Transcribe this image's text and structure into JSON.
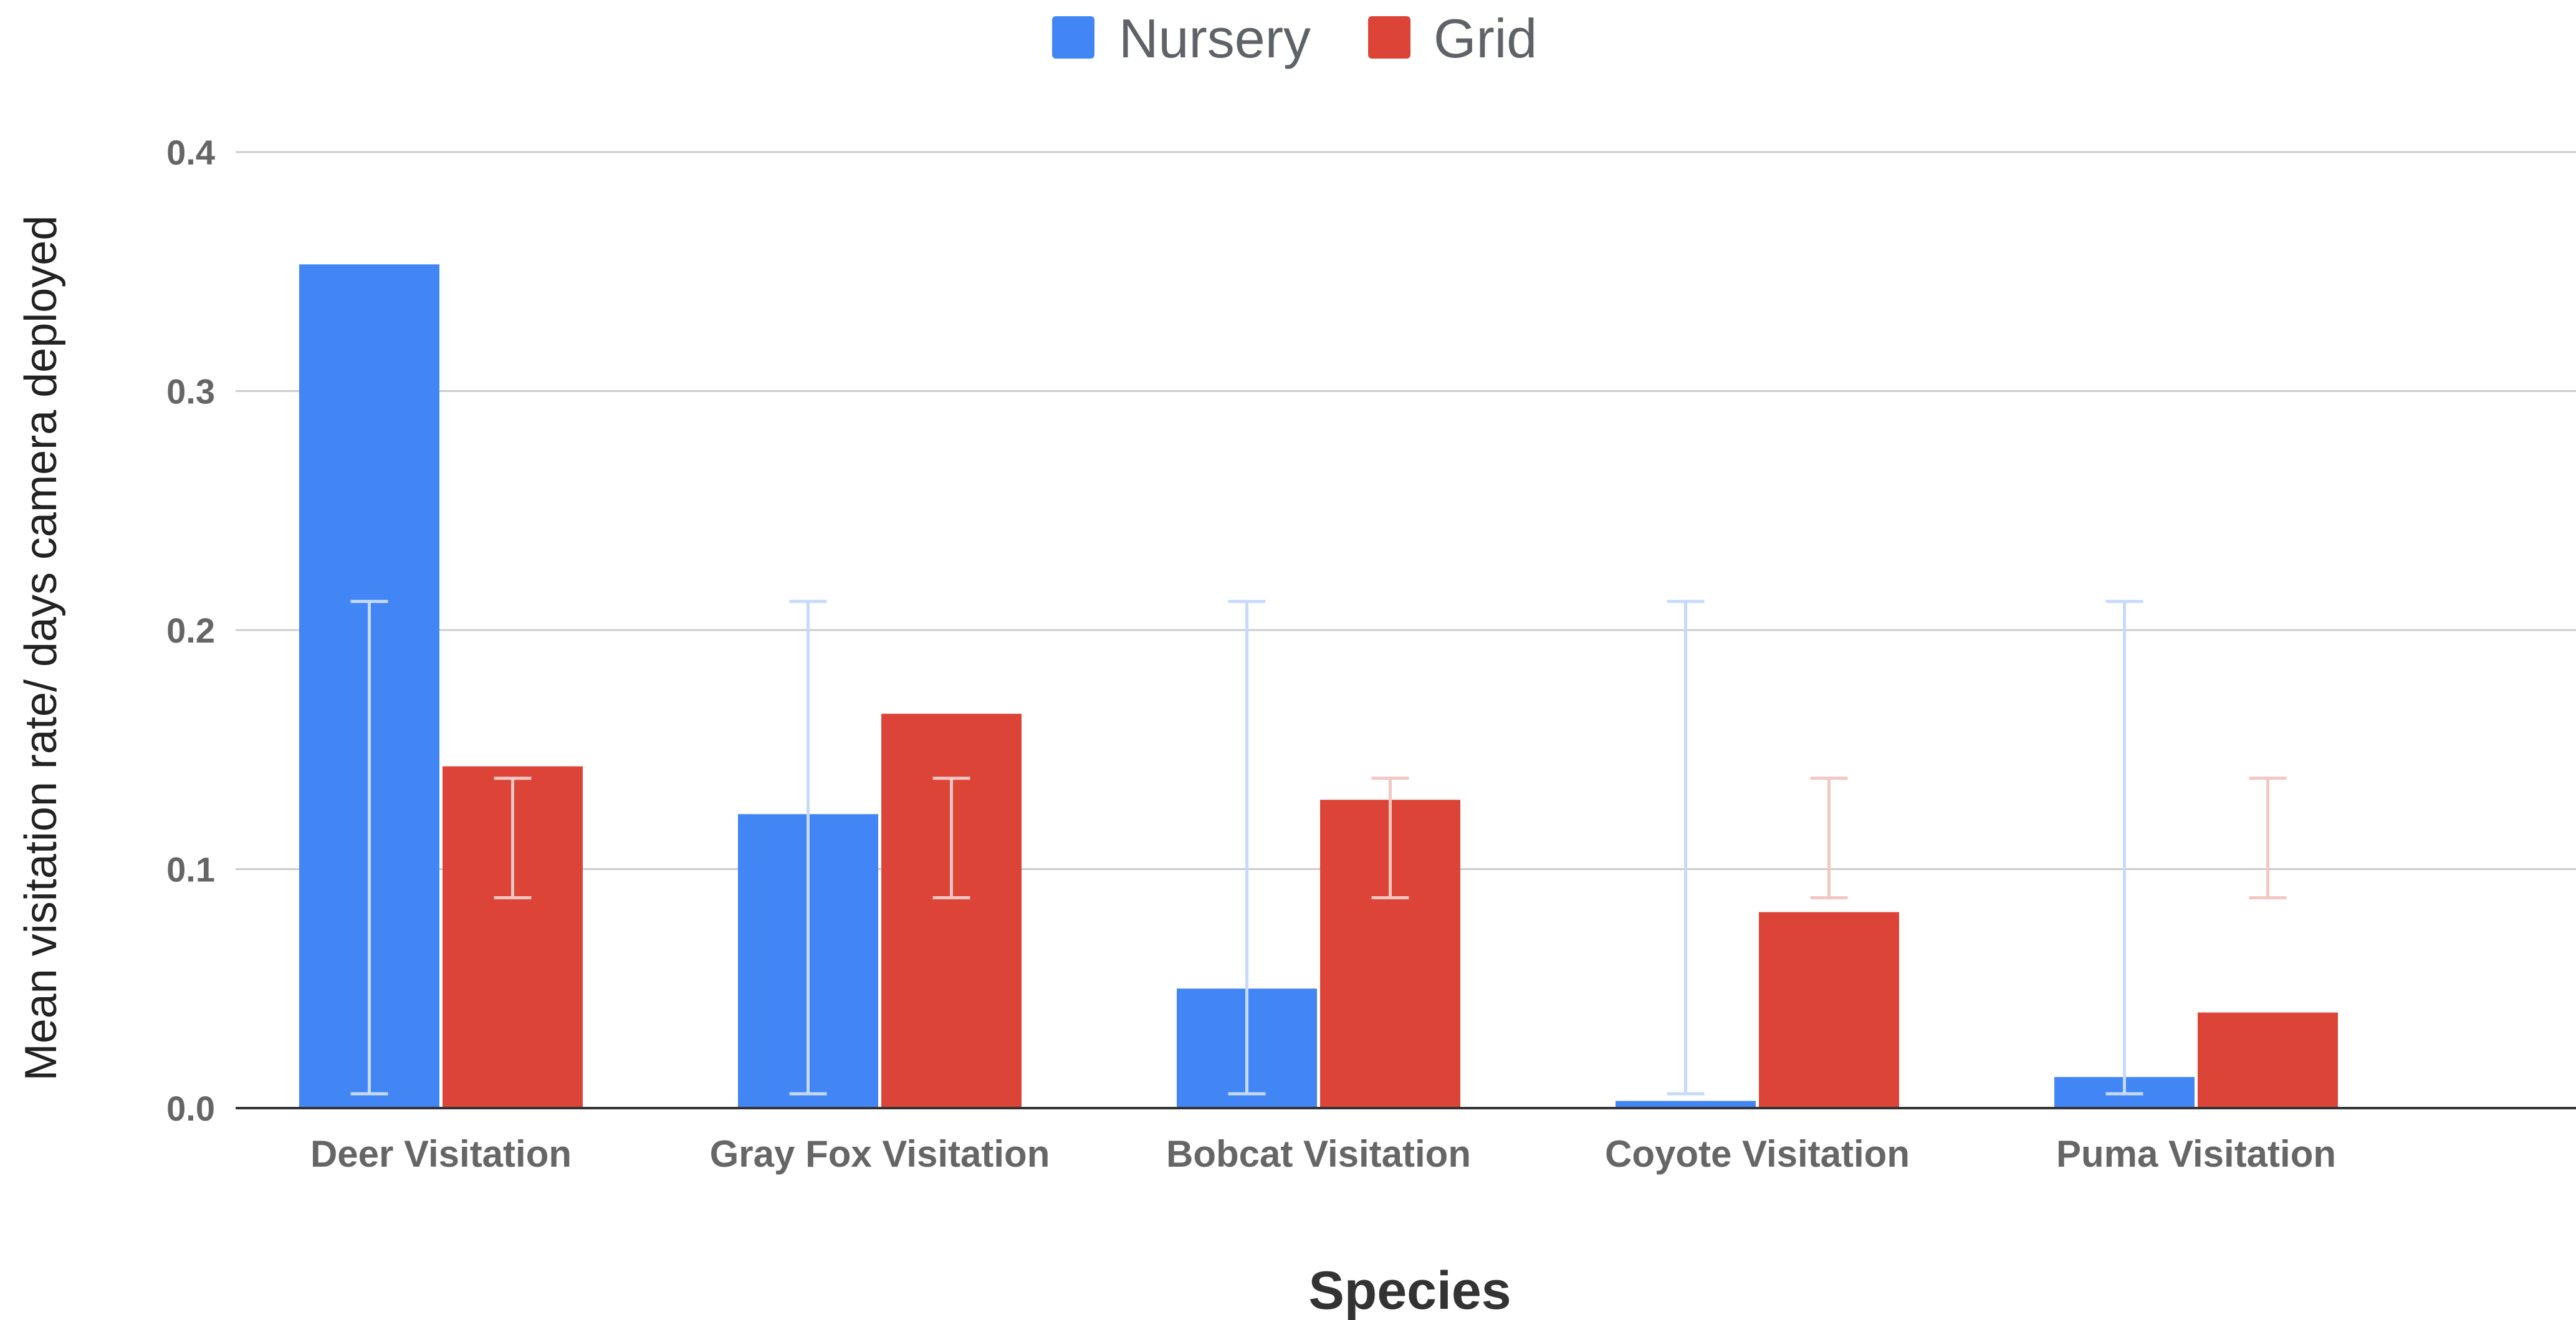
{
  "chart_data": {
    "type": "bar",
    "title": "",
    "xlabel": "Species",
    "ylabel": "Mean visitation rate/ days camera deployed",
    "categories": [
      "Deer Visitation",
      "Gray Fox Visitation",
      "Bobcat Visitation",
      "Coyote Visitation",
      "Puma Visitation"
    ],
    "series": [
      {
        "name": "Nursery",
        "color": "#4285f4",
        "values": [
          0.353,
          0.123,
          0.05,
          0.003,
          0.013
        ],
        "error_low": [
          0.006,
          0.006,
          0.006,
          0.006,
          0.006
        ],
        "error_high": [
          0.212,
          0.212,
          0.212,
          0.212,
          0.212
        ]
      },
      {
        "name": "Grid",
        "color": "#db4437",
        "values": [
          0.143,
          0.165,
          0.129,
          0.082,
          0.04
        ],
        "error_low": [
          0.088,
          0.088,
          0.088,
          0.088,
          0.088
        ],
        "error_high": [
          0.138,
          0.138,
          0.138,
          0.138,
          0.138
        ]
      }
    ],
    "ylim": [
      0,
      0.4
    ],
    "yticks": [
      0,
      0.1,
      0.2,
      0.3,
      0.4
    ],
    "ytick_labels": [
      "0.0",
      "0.1",
      "0.2",
      "0.3",
      "0.4"
    ],
    "grid": true,
    "legend_position": "top-center"
  }
}
